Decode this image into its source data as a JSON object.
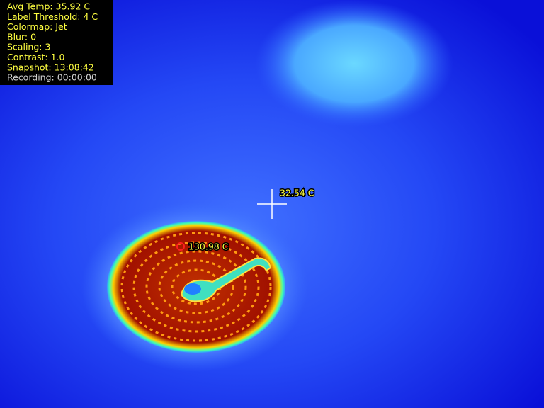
{
  "overlay": {
    "lines": [
      "Avg Temp: 35.92 C",
      "Label Threshold: 4 C",
      "Colormap: Jet",
      "Blur: 0",
      "Scaling: 3",
      "Contrast: 1.0",
      "Snapshot: 13:08:42",
      "Recording: 00:00:00"
    ]
  },
  "crosshair": {
    "label": "32.54 C"
  },
  "hotspot": {
    "label": "130.98 C"
  }
}
